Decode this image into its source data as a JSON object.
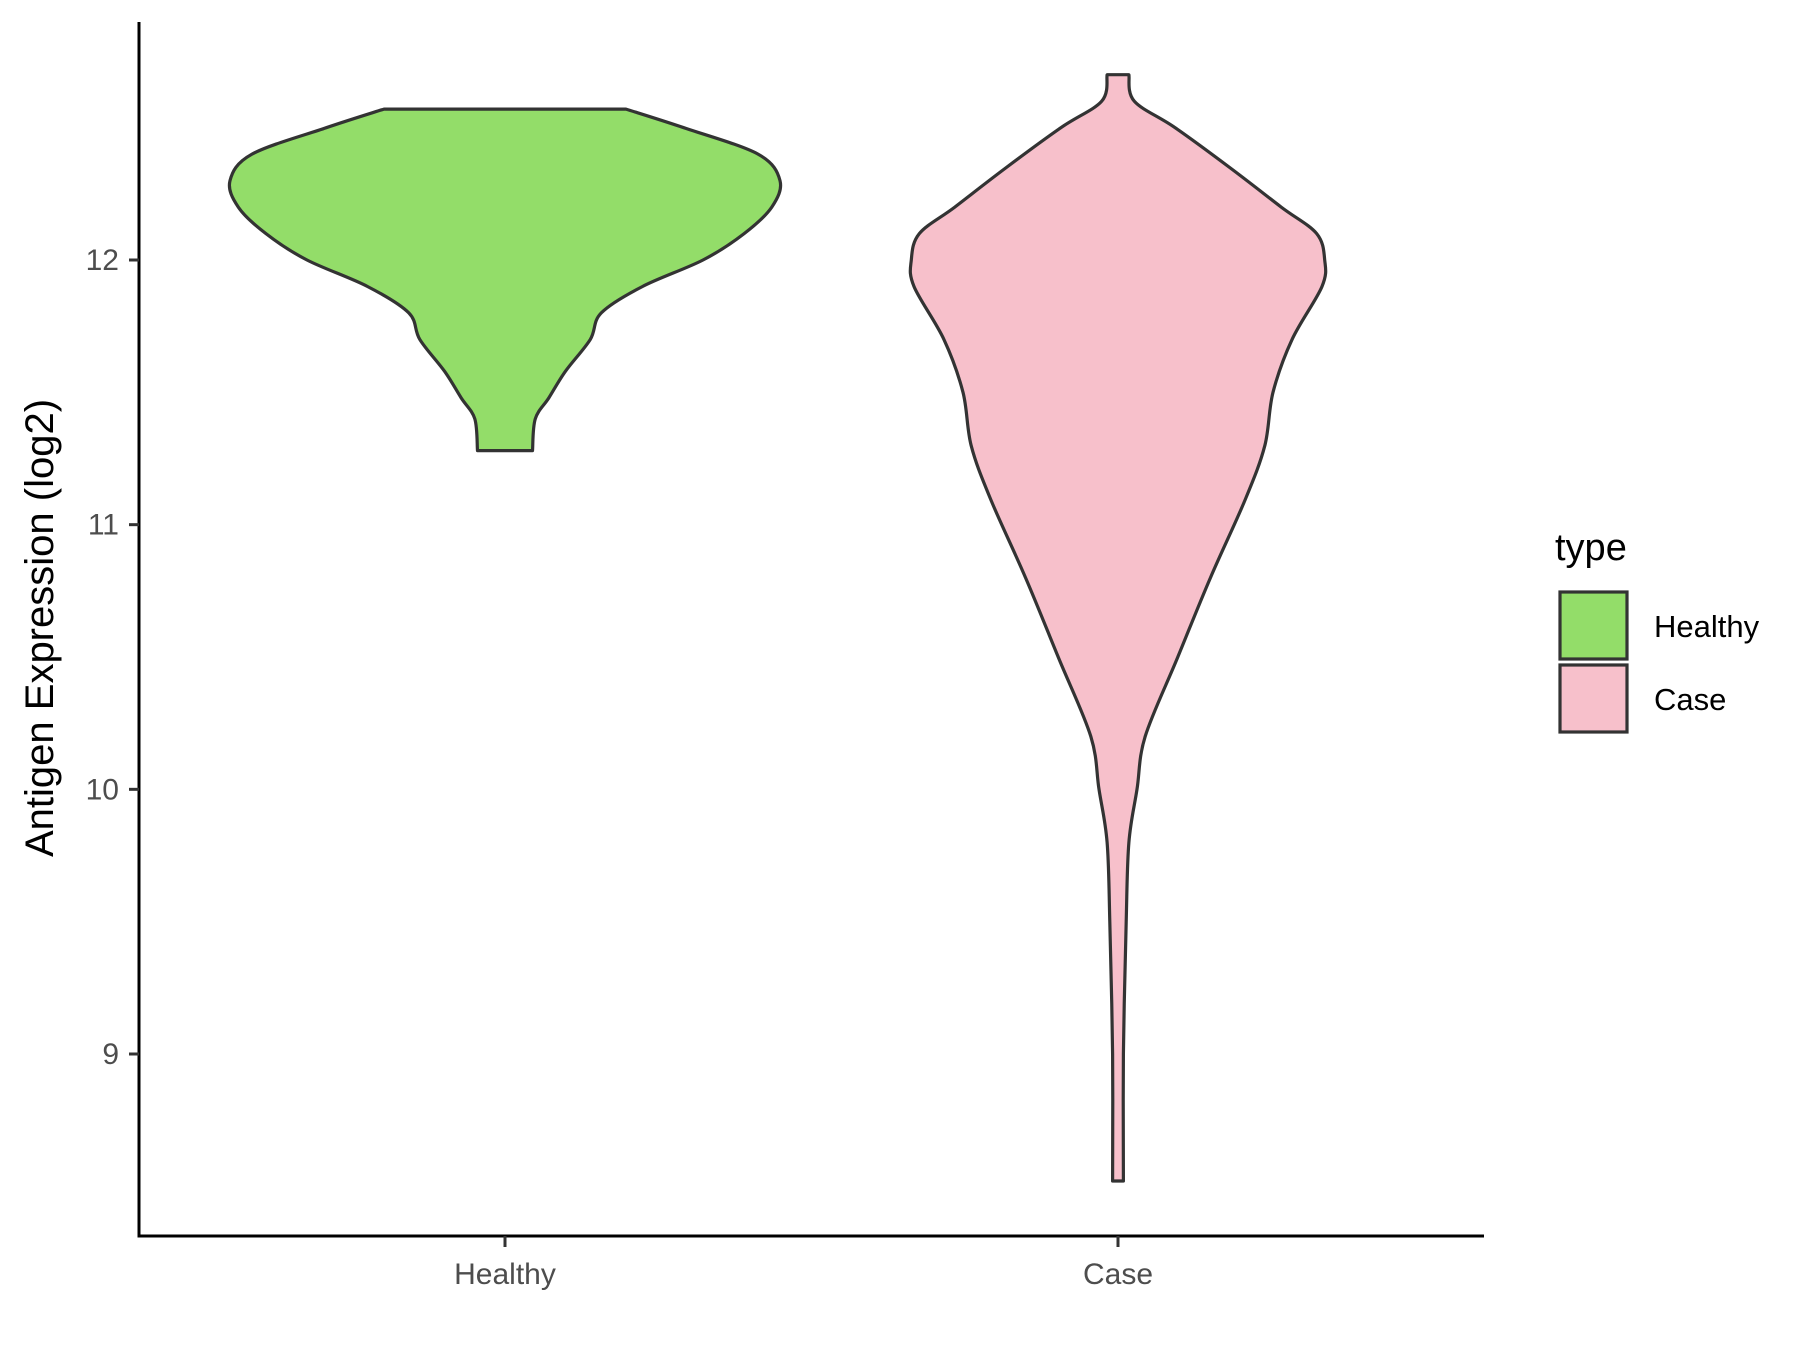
{
  "chart_data": {
    "type": "violin",
    "title": "",
    "xlabel": "",
    "ylabel": "Antigen Expression (log2)",
    "ylim": [
      8.4,
      12.9
    ],
    "yticks": [
      9,
      10,
      11,
      12
    ],
    "yticklabels": [
      "9",
      "10",
      "11",
      "12"
    ],
    "categories": [
      "Healthy",
      "Case"
    ],
    "legend": {
      "title": "type",
      "placement": "right",
      "items": [
        {
          "label": "Healthy",
          "color": "#93DD69"
        },
        {
          "label": "Case",
          "color": "#F7C0CB"
        }
      ]
    },
    "series": [
      {
        "category": "Healthy",
        "color": "#93DD69",
        "min": 11.28,
        "max": 12.57,
        "density_profile": [
          [
            11.28,
            0.1
          ],
          [
            11.4,
            0.11
          ],
          [
            11.48,
            0.16
          ],
          [
            11.58,
            0.22
          ],
          [
            11.7,
            0.31
          ],
          [
            11.8,
            0.35
          ],
          [
            11.9,
            0.5
          ],
          [
            12.0,
            0.72
          ],
          [
            12.1,
            0.87
          ],
          [
            12.2,
            0.97
          ],
          [
            12.3,
            1.0
          ],
          [
            12.4,
            0.92
          ],
          [
            12.5,
            0.65
          ],
          [
            12.57,
            0.44
          ]
        ]
      },
      {
        "category": "Case",
        "color": "#F7C0CB",
        "min": 8.52,
        "max": 12.7,
        "density_profile": [
          [
            8.52,
            0.02
          ],
          [
            9.0,
            0.02
          ],
          [
            9.5,
            0.03
          ],
          [
            9.8,
            0.04
          ],
          [
            10.0,
            0.07
          ],
          [
            10.2,
            0.1
          ],
          [
            10.5,
            0.22
          ],
          [
            10.8,
            0.34
          ],
          [
            11.1,
            0.47
          ],
          [
            11.3,
            0.54
          ],
          [
            11.5,
            0.57
          ],
          [
            11.7,
            0.64
          ],
          [
            11.9,
            0.75
          ],
          [
            12.0,
            0.76
          ],
          [
            12.1,
            0.73
          ],
          [
            12.2,
            0.6
          ],
          [
            12.35,
            0.41
          ],
          [
            12.5,
            0.21
          ],
          [
            12.6,
            0.06
          ],
          [
            12.7,
            0.04
          ]
        ]
      }
    ]
  }
}
